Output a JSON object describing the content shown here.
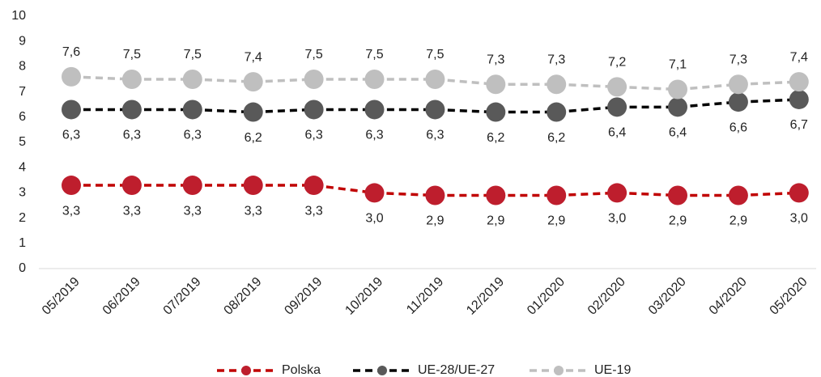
{
  "chart_data": {
    "type": "line",
    "categories": [
      "05/2019",
      "06/2019",
      "07/2019",
      "08/2019",
      "09/2019",
      "10/2019",
      "11/2019",
      "12/2019",
      "01/2020",
      "02/2020",
      "03/2020",
      "04/2020",
      "05/2020"
    ],
    "series": [
      {
        "name": "Polska",
        "color": "#be1e2d",
        "line_color": "#c00000",
        "values": [
          3.3,
          3.3,
          3.3,
          3.3,
          3.3,
          3.0,
          2.9,
          2.9,
          2.9,
          3.0,
          2.9,
          2.9,
          3.0
        ],
        "value_labels": [
          "3,3",
          "3,3",
          "3,3",
          "3,3",
          "3,3",
          "3,0",
          "2,9",
          "2,9",
          "2,9",
          "3,0",
          "2,9",
          "2,9",
          "3,0"
        ]
      },
      {
        "name": "UE-28/UE-27",
        "color": "#595959",
        "line_color": "#000000",
        "values": [
          6.3,
          6.3,
          6.3,
          6.2,
          6.3,
          6.3,
          6.3,
          6.2,
          6.2,
          6.4,
          6.4,
          6.6,
          6.7
        ],
        "value_labels": [
          "6,3",
          "6,3",
          "6,3",
          "6,2",
          "6,3",
          "6,3",
          "6,3",
          "6,2",
          "6,2",
          "6,4",
          "6,4",
          "6,6",
          "6,7"
        ]
      },
      {
        "name": "UE-19",
        "color": "#bfbfbf",
        "line_color": "#bfbfbf",
        "values": [
          7.6,
          7.5,
          7.5,
          7.4,
          7.5,
          7.5,
          7.5,
          7.3,
          7.3,
          7.2,
          7.1,
          7.3,
          7.4
        ],
        "value_labels": [
          "7,6",
          "7,5",
          "7,5",
          "7,4",
          "7,5",
          "7,5",
          "7,5",
          "7,3",
          "7,3",
          "7,2",
          "7,1",
          "7,3",
          "7,4"
        ]
      }
    ],
    "ylim": [
      0,
      10
    ],
    "yticks": [
      0,
      1,
      2,
      3,
      4,
      5,
      6,
      7,
      8,
      9,
      10
    ],
    "grid": false,
    "legend": "bottom"
  }
}
